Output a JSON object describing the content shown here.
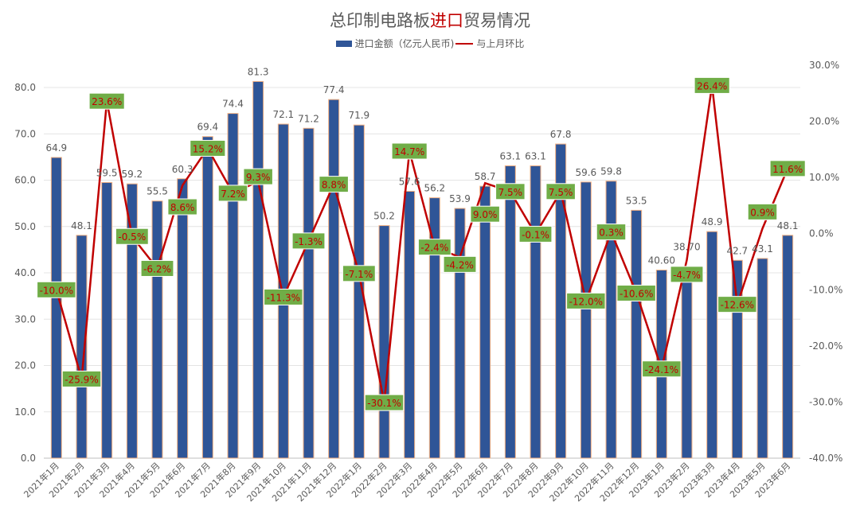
{
  "chart_data": {
    "type": "bar+line",
    "title_parts": [
      "总印制电路板",
      "进口",
      "贸易情况"
    ],
    "categories": [
      "2021年1月",
      "2021年2月",
      "2021年3月",
      "2021年4月",
      "2021年5月",
      "2021年6月",
      "2021年7月",
      "2021年8月",
      "2021年9月",
      "2021年10月",
      "2021年11月",
      "2021年12月",
      "2022年1月",
      "2022年2月",
      "2022年3月",
      "2022年4月",
      "2022年5月",
      "2022年6月",
      "2022年7月",
      "2022年8月",
      "2022年9月",
      "2022年10月",
      "2022年11月",
      "2022年12月",
      "2023年1月",
      "2023年2月",
      "2023年3月",
      "2023年4月",
      "2023年5月",
      "2023年6月"
    ],
    "series": [
      {
        "name": "进口金额（亿元人民币)",
        "type": "bar",
        "axis": "left",
        "color": "#2f5597",
        "values": [
          64.9,
          48.1,
          59.5,
          59.2,
          55.5,
          60.3,
          69.4,
          74.4,
          81.3,
          72.1,
          71.2,
          77.4,
          71.9,
          50.2,
          57.6,
          56.2,
          53.9,
          58.7,
          63.1,
          63.1,
          67.8,
          59.6,
          59.8,
          53.5,
          40.6,
          38.7,
          48.9,
          42.7,
          43.1,
          48.1
        ],
        "labels": [
          "64.9",
          "48.1",
          "59.5",
          "59.2",
          "55.5",
          "60.3",
          "69.4",
          "74.4",
          "81.3",
          "72.1",
          "71.2",
          "77.4",
          "71.9",
          "50.2",
          "57.6",
          "56.2",
          "53.9",
          "58.7",
          "63.1",
          "63.1",
          "67.8",
          "59.6",
          "59.8",
          "53.5",
          "40.60",
          "38.70",
          "48.9",
          "42.7",
          "43.1",
          "48.1"
        ]
      },
      {
        "name": "与上月环比",
        "type": "line",
        "axis": "right",
        "color": "#c00000",
        "values": [
          -10.0,
          -25.9,
          23.6,
          -0.5,
          -6.2,
          8.6,
          15.2,
          7.2,
          9.3,
          -11.3,
          -1.3,
          8.8,
          -7.1,
          -30.1,
          14.7,
          -2.4,
          -4.2,
          9.0,
          7.5,
          -0.1,
          7.5,
          -12.0,
          0.3,
          -10.6,
          -24.1,
          -4.7,
          26.4,
          -12.6,
          0.9,
          11.6
        ]
      }
    ],
    "y_left": {
      "range": [
        0,
        80
      ],
      "ticks": [
        "0.0",
        "10.0",
        "20.0",
        "30.0",
        "40.0",
        "50.0",
        "60.0",
        "70.0",
        "80.0"
      ]
    },
    "y_right": {
      "range": [
        -40,
        30
      ],
      "ticks": [
        "-40.0%",
        "-30.0%",
        "-20.0%",
        "-10.0%",
        "0.0%",
        "10.0%",
        "20.0%",
        "30.0%"
      ]
    },
    "label_box_color": "#70ad47",
    "grid": true,
    "legend": "top"
  }
}
